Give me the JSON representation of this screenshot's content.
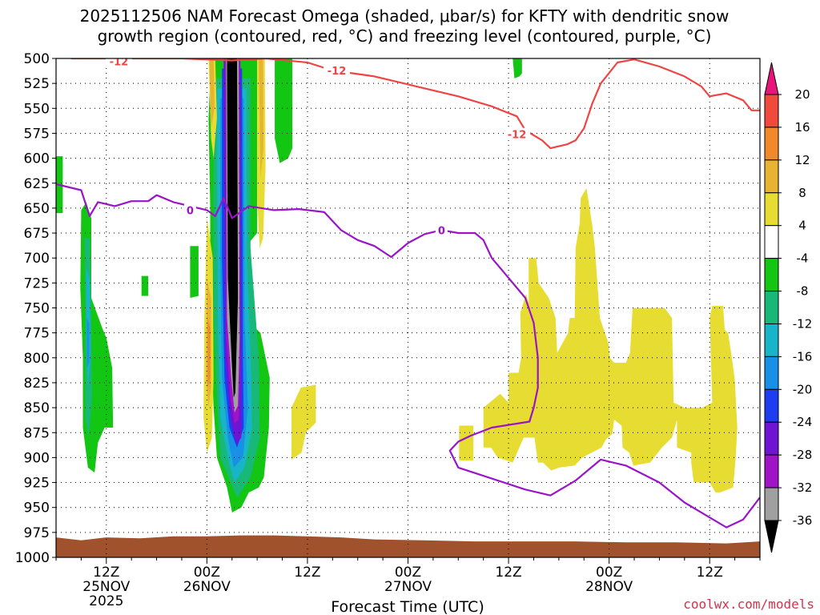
{
  "title_line1": "2025112506 NAM Forecast Omega (shaded, μbar/s) for KFTY with dendritic snow",
  "title_line2": "growth region (contoured, red, °C) and freezing level (contoured, purple, °C)",
  "credit": "coolwx.com/models",
  "chart_data": {
    "type": "heatmap",
    "title": "2025112506 NAM Forecast Omega (shaded, μbar/s) for KFTY with dendritic snow growth region (contoured, red, °C) and freezing level (contoured, purple, °C)",
    "xlabel": "Forecast Time (UTC)",
    "ylabel": "",
    "x_range_hours": [
      0,
      84
    ],
    "y_range_hpa": [
      500,
      1000
    ],
    "y_inverted": true,
    "grid": true,
    "y_ticks": [
      "500",
      "525",
      "550",
      "575",
      "600",
      "625",
      "650",
      "675",
      "700",
      "725",
      "750",
      "775",
      "800",
      "825",
      "850",
      "875",
      "900",
      "925",
      "950",
      "975",
      "1000"
    ],
    "x_ticks": [
      {
        "hour": 6,
        "l1": "12Z",
        "l2": "25NOV",
        "l3": "2025"
      },
      {
        "hour": 18,
        "l1": "00Z",
        "l2": "26NOV",
        "l3": ""
      },
      {
        "hour": 30,
        "l1": "12Z",
        "l2": "",
        "l3": ""
      },
      {
        "hour": 42,
        "l1": "00Z",
        "l2": "27NOV",
        "l3": ""
      },
      {
        "hour": 54,
        "l1": "12Z",
        "l2": "",
        "l3": ""
      },
      {
        "hour": 66,
        "l1": "00Z",
        "l2": "28NOV",
        "l3": ""
      },
      {
        "hour": 78,
        "l1": "12Z",
        "l2": "",
        "l3": ""
      }
    ],
    "colorbar": {
      "labels": [
        "20",
        "16",
        "12",
        "8",
        "4",
        "-4",
        "-8",
        "-12",
        "-16",
        "-20",
        "-24",
        "-28",
        "-32",
        "-36"
      ],
      "colors": [
        "#e8147a",
        "#ef4a3c",
        "#f0892a",
        "#e6b432",
        "#e6dc32",
        "#ffffff",
        "#13c613",
        "#18b878",
        "#18b4c8",
        "#1890e6",
        "#1e3cf0",
        "#6e14d2",
        "#a014c8",
        "#a0a0a0",
        "#000000"
      ]
    },
    "contours": [
      {
        "name": "dgz_-12",
        "label": "-12",
        "color": "#ee4444",
        "points": [
          [
            1.8,
            500
          ],
          [
            7,
            500
          ],
          [
            15,
            500
          ],
          [
            21,
            502
          ],
          [
            25,
            500
          ],
          [
            30,
            504
          ],
          [
            33,
            512
          ],
          [
            38,
            518
          ],
          [
            43,
            528
          ],
          [
            48,
            538
          ],
          [
            52,
            548
          ],
          [
            55,
            558
          ],
          [
            56,
            572
          ],
          [
            58,
            582
          ],
          [
            59,
            590
          ],
          [
            61,
            586
          ],
          [
            62,
            582
          ],
          [
            63,
            570
          ],
          [
            64,
            545
          ],
          [
            65,
            525
          ],
          [
            67,
            504
          ],
          [
            69,
            501
          ],
          [
            72,
            508
          ],
          [
            75,
            518
          ],
          [
            77,
            528
          ],
          [
            78,
            538
          ],
          [
            80,
            535
          ],
          [
            82,
            542
          ],
          [
            83,
            552
          ],
          [
            84,
            552
          ]
        ],
        "labels_at": [
          [
            7.5,
            503
          ],
          [
            33.5,
            512
          ],
          [
            55,
            576
          ]
        ]
      },
      {
        "name": "freezing_level",
        "label": "0",
        "color": "#9a14c8",
        "points": [
          [
            0,
            626
          ],
          [
            3,
            632
          ],
          [
            4,
            658
          ],
          [
            5,
            644
          ],
          [
            7,
            648
          ],
          [
            9,
            643
          ],
          [
            11,
            643
          ],
          [
            12,
            637
          ],
          [
            14,
            644
          ],
          [
            16,
            648
          ],
          [
            18,
            652
          ],
          [
            19,
            658
          ],
          [
            20,
            640
          ],
          [
            21,
            660
          ],
          [
            23,
            648
          ],
          [
            26,
            652
          ],
          [
            29,
            651
          ],
          [
            32,
            654
          ],
          [
            34,
            672
          ],
          [
            36,
            682
          ],
          [
            38,
            688
          ],
          [
            40,
            699
          ],
          [
            42,
            685
          ],
          [
            44,
            676
          ],
          [
            46,
            672
          ],
          [
            48,
            675
          ],
          [
            50,
            675
          ],
          [
            51,
            682
          ],
          [
            52,
            700
          ],
          [
            54,
            720
          ],
          [
            56,
            740
          ],
          [
            57,
            765
          ],
          [
            57.5,
            800
          ],
          [
            57.5,
            830
          ],
          [
            57,
            850
          ],
          [
            56.5,
            864
          ],
          [
            55,
            866
          ],
          [
            52,
            870
          ],
          [
            49.5,
            878
          ],
          [
            48,
            884
          ],
          [
            47,
            893
          ],
          [
            48,
            910
          ],
          [
            52,
            921
          ],
          [
            56,
            932
          ],
          [
            59,
            938
          ],
          [
            62,
            923
          ],
          [
            65,
            902
          ],
          [
            68,
            908
          ],
          [
            72,
            925
          ],
          [
            75,
            945
          ],
          [
            78,
            960
          ],
          [
            80,
            970
          ],
          [
            82,
            962
          ],
          [
            84,
            940
          ]
        ],
        "labels_at": [
          [
            16,
            652
          ],
          [
            46,
            672
          ]
        ]
      }
    ]
  }
}
